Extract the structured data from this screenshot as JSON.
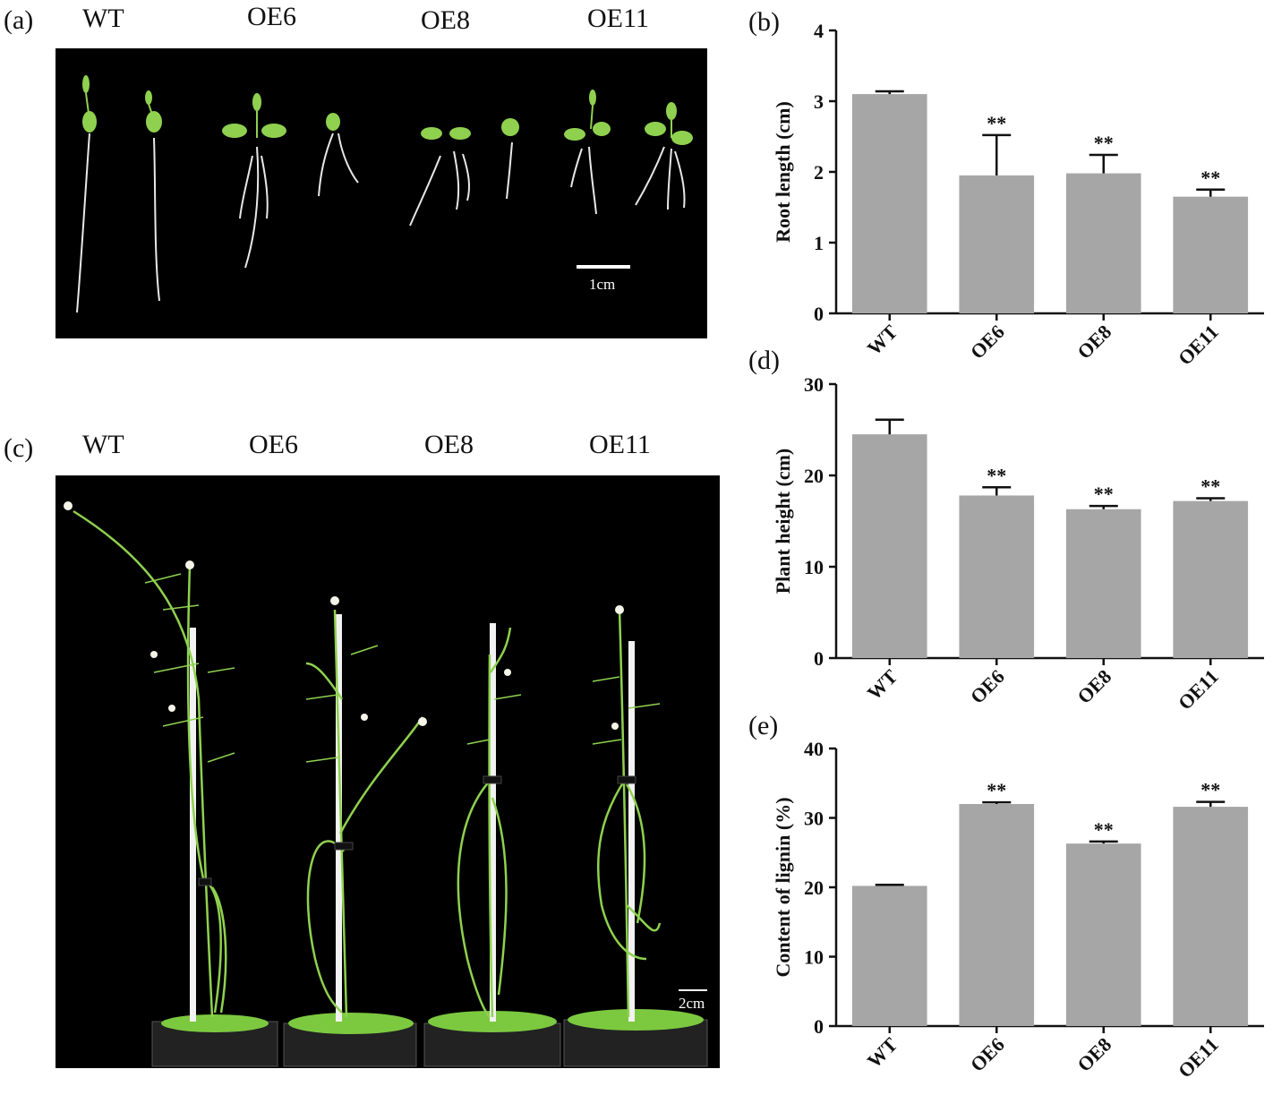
{
  "panel_a": {
    "label": "(a)",
    "columns": [
      "WT",
      "OE6",
      "OE8",
      "OE11"
    ],
    "scale_label": "1cm"
  },
  "panel_c": {
    "label": "(c)",
    "columns": [
      "WT",
      "OE6",
      "OE8",
      "OE11"
    ],
    "scale_label": "2cm"
  },
  "colors": {
    "bar": "#a6a6a6",
    "photo_bg": "#000000",
    "seedling": "#8fd14f"
  },
  "chart_data": [
    {
      "panel": "(b)",
      "type": "bar",
      "categories": [
        "WT",
        "OE6",
        "OE8",
        "OE11"
      ],
      "values": [
        3.1,
        1.95,
        1.98,
        1.65
      ],
      "errors": [
        0.04,
        0.57,
        0.26,
        0.1
      ],
      "significance": [
        "",
        "**",
        "**",
        "**"
      ],
      "ylabel": "Root length (cm)",
      "ylim": [
        0,
        4
      ],
      "yticks": [
        0,
        1,
        2,
        3,
        4
      ]
    },
    {
      "panel": "(d)",
      "type": "bar",
      "categories": [
        "WT",
        "OE6",
        "OE8",
        "OE11"
      ],
      "values": [
        24.5,
        17.8,
        16.3,
        17.2
      ],
      "errors": [
        1.6,
        0.9,
        0.35,
        0.3
      ],
      "significance": [
        "",
        "**",
        "**",
        "**"
      ],
      "ylabel": "Plant height (cm)",
      "ylim": [
        0,
        30
      ],
      "yticks": [
        0,
        10,
        20,
        30
      ]
    },
    {
      "panel": "(e)",
      "type": "bar",
      "categories": [
        "WT",
        "OE6",
        "OE8",
        "OE11"
      ],
      "values": [
        20.2,
        32.0,
        26.3,
        31.6
      ],
      "errors": [
        0.15,
        0.25,
        0.3,
        0.7
      ],
      "significance": [
        "",
        "**",
        "**",
        "**"
      ],
      "ylabel": "Content of lignin  (%)",
      "ylim": [
        0,
        40
      ],
      "yticks": [
        0,
        10,
        20,
        30,
        40
      ]
    }
  ]
}
